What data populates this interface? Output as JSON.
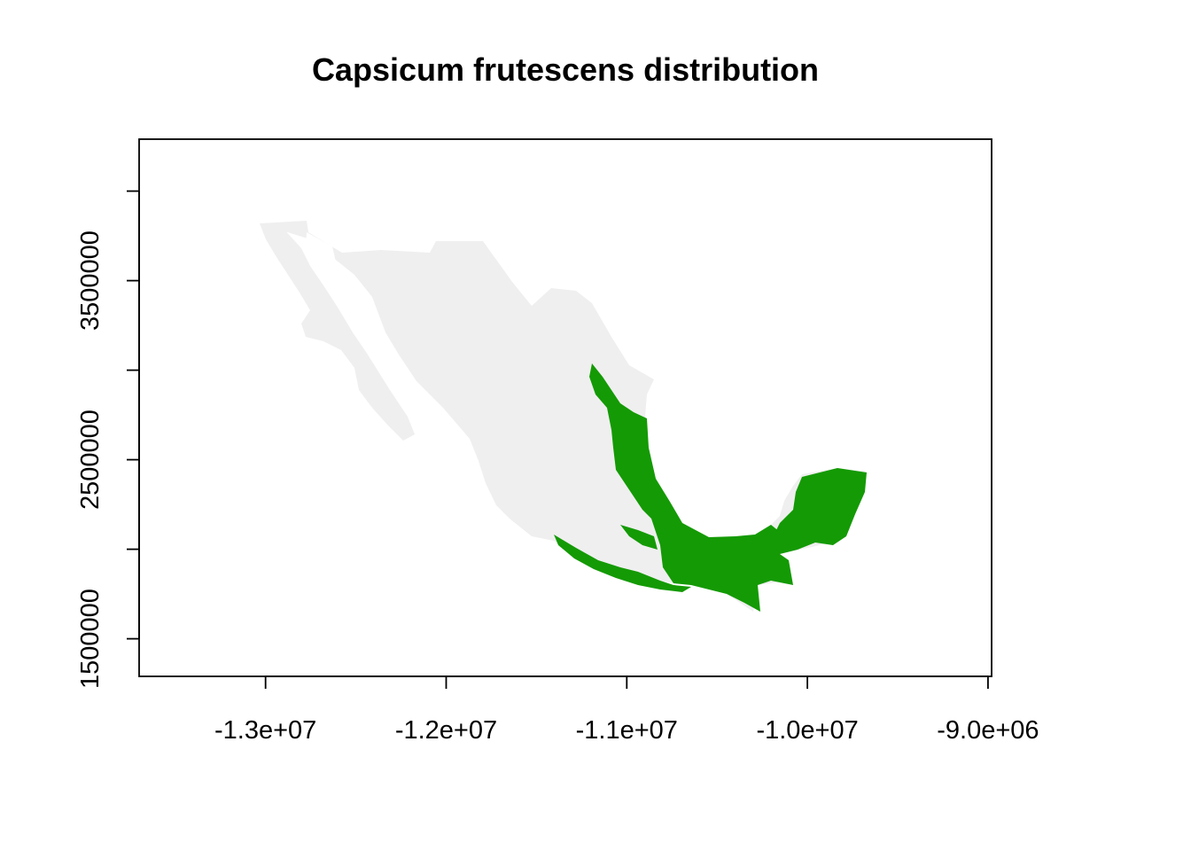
{
  "title": "Capsicum frutescens distribution",
  "colors": {
    "land": "#efefef",
    "distribution": "#149a04",
    "frame": "#000000",
    "background": "#ffffff"
  },
  "axes": {
    "x_ticks": [
      {
        "value": -13000000,
        "label": "-1.3e+07"
      },
      {
        "value": -12000000,
        "label": "-1.2e+07"
      },
      {
        "value": -11000000,
        "label": "-1.1e+07"
      },
      {
        "value": -10000000,
        "label": "-1.0e+07"
      },
      {
        "value": -9000000,
        "label": "-9.0e+06"
      }
    ],
    "y_ticks": [
      {
        "value": 1500000,
        "label": "1500000"
      },
      {
        "value": 2000000,
        "label": ""
      },
      {
        "value": 2500000,
        "label": "2500000"
      },
      {
        "value": 3000000,
        "label": ""
      },
      {
        "value": 3500000,
        "label": "3500000"
      },
      {
        "value": 4000000,
        "label": ""
      }
    ],
    "xlim": [
      -13700000,
      -8980000
    ],
    "ylim": [
      1290000,
      4290000
    ]
  },
  "legend": "none"
}
